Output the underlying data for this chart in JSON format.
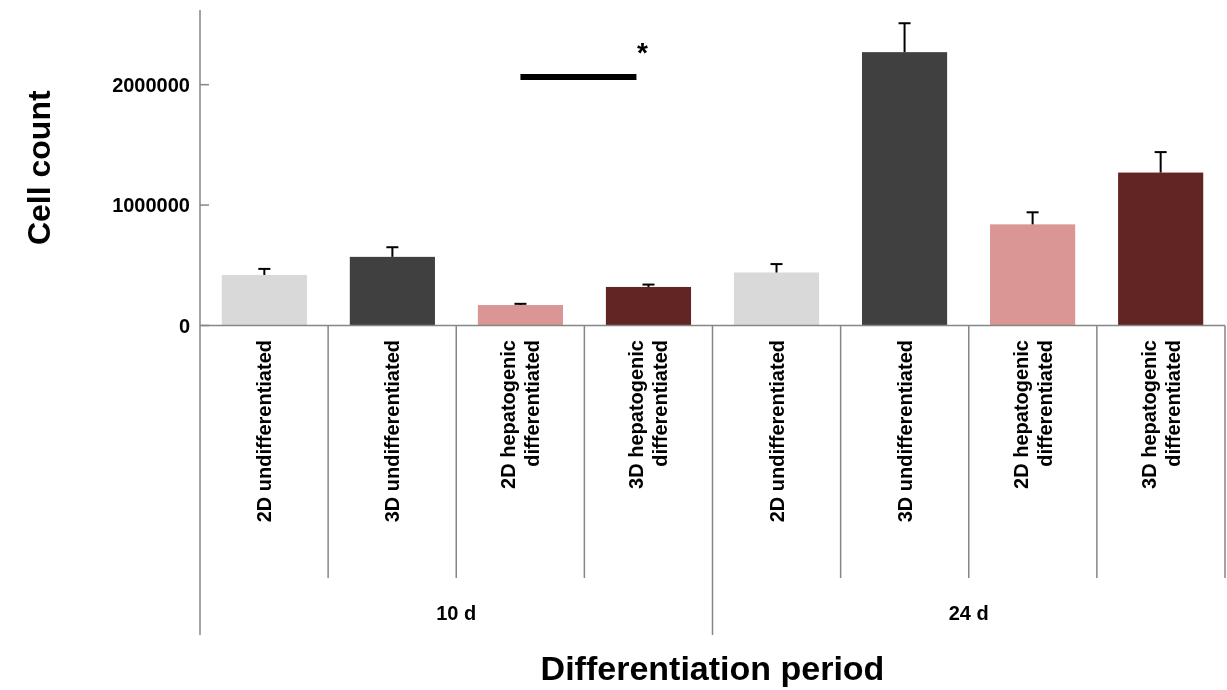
{
  "chart_data": {
    "type": "bar",
    "xlabel": "Differentiation period",
    "ylabel": "Cell count",
    "categories": [
      "2D undifferentiated",
      "3D undifferentiated",
      "2D hepatogenic differentiated",
      "3D hepatogenic differentiated",
      "2D undifferentiated",
      "3D undifferentiated",
      "2D hepatogenic differentiated",
      "3D hepatogenic differentiated"
    ],
    "values": [
      420000,
      570000,
      170000,
      320000,
      440000,
      2270000,
      840000,
      1270000
    ],
    "colors": [
      "#d9d9d9",
      "#404040",
      "#d99694",
      "#632523",
      "#d9d9d9",
      "#404040",
      "#d99694",
      "#632523"
    ],
    "errors": [
      [
        420000,
        470000
      ],
      [
        570000,
        650000
      ],
      [
        170000,
        180000
      ],
      [
        320000,
        340000
      ],
      [
        440000,
        510000
      ],
      [
        2270000,
        2510000
      ],
      [
        840000,
        940000
      ],
      [
        1270000,
        1440000
      ]
    ],
    "ylim": [
      0,
      2620000
    ],
    "yticks": [
      0,
      1000000,
      2000000
    ],
    "grid": false,
    "annotations": [
      "10 d",
      "24 d",
      "*"
    ]
  }
}
